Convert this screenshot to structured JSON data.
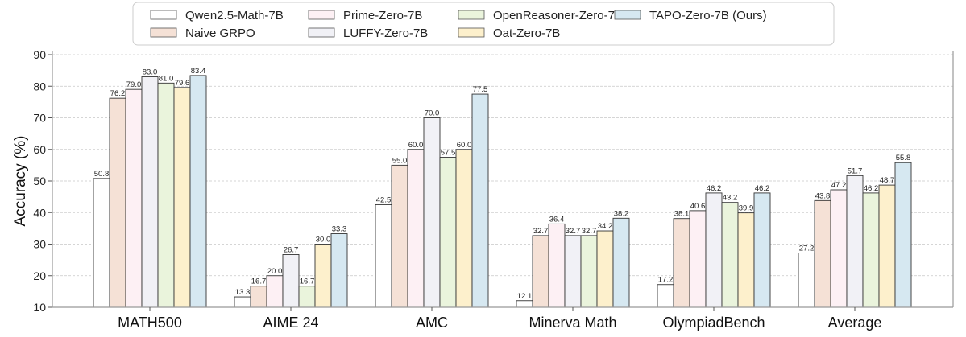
{
  "chart_data": {
    "type": "bar",
    "title": "",
    "xlabel": "",
    "ylabel": "Accuracy (%)",
    "ylim": [
      10,
      90
    ],
    "yticks": [
      10,
      20,
      30,
      40,
      50,
      60,
      70,
      80,
      90
    ],
    "grid": "horizontal dashed",
    "legend_placement": "top-center",
    "categories": [
      "MATH500",
      "AIME 24",
      "AMC",
      "Minerva Math",
      "OlympiadBench",
      "Average"
    ],
    "series": [
      {
        "name": "Qwen2.5-Math-7B",
        "color": "#ffffff",
        "values": [
          50.8,
          13.3,
          42.5,
          12.1,
          17.2,
          27.2
        ]
      },
      {
        "name": "Naive GRPO",
        "color": "#f5e1d6",
        "values": [
          76.2,
          16.7,
          55.0,
          32.7,
          38.1,
          43.8
        ]
      },
      {
        "name": "Prime-Zero-7B",
        "color": "#fdf0f4",
        "values": [
          79.0,
          20.0,
          60.0,
          36.4,
          40.6,
          47.2
        ]
      },
      {
        "name": "LUFFY-Zero-7B",
        "color": "#f1f1f6",
        "values": [
          83.0,
          26.7,
          70.0,
          32.7,
          46.2,
          51.7
        ]
      },
      {
        "name": "OpenReasoner-Zero-7B",
        "color": "#eaf4dc",
        "values": [
          81.0,
          16.7,
          57.5,
          32.7,
          43.2,
          46.2
        ]
      },
      {
        "name": "Oat-Zero-7B",
        "color": "#fdf0cc",
        "values": [
          79.6,
          30.0,
          60.0,
          34.2,
          39.9,
          48.7
        ]
      },
      {
        "name": "TAPO-Zero-7B (Ours)",
        "color": "#d6e8f1",
        "values": [
          83.4,
          33.3,
          77.5,
          38.2,
          46.2,
          55.8
        ]
      }
    ]
  }
}
